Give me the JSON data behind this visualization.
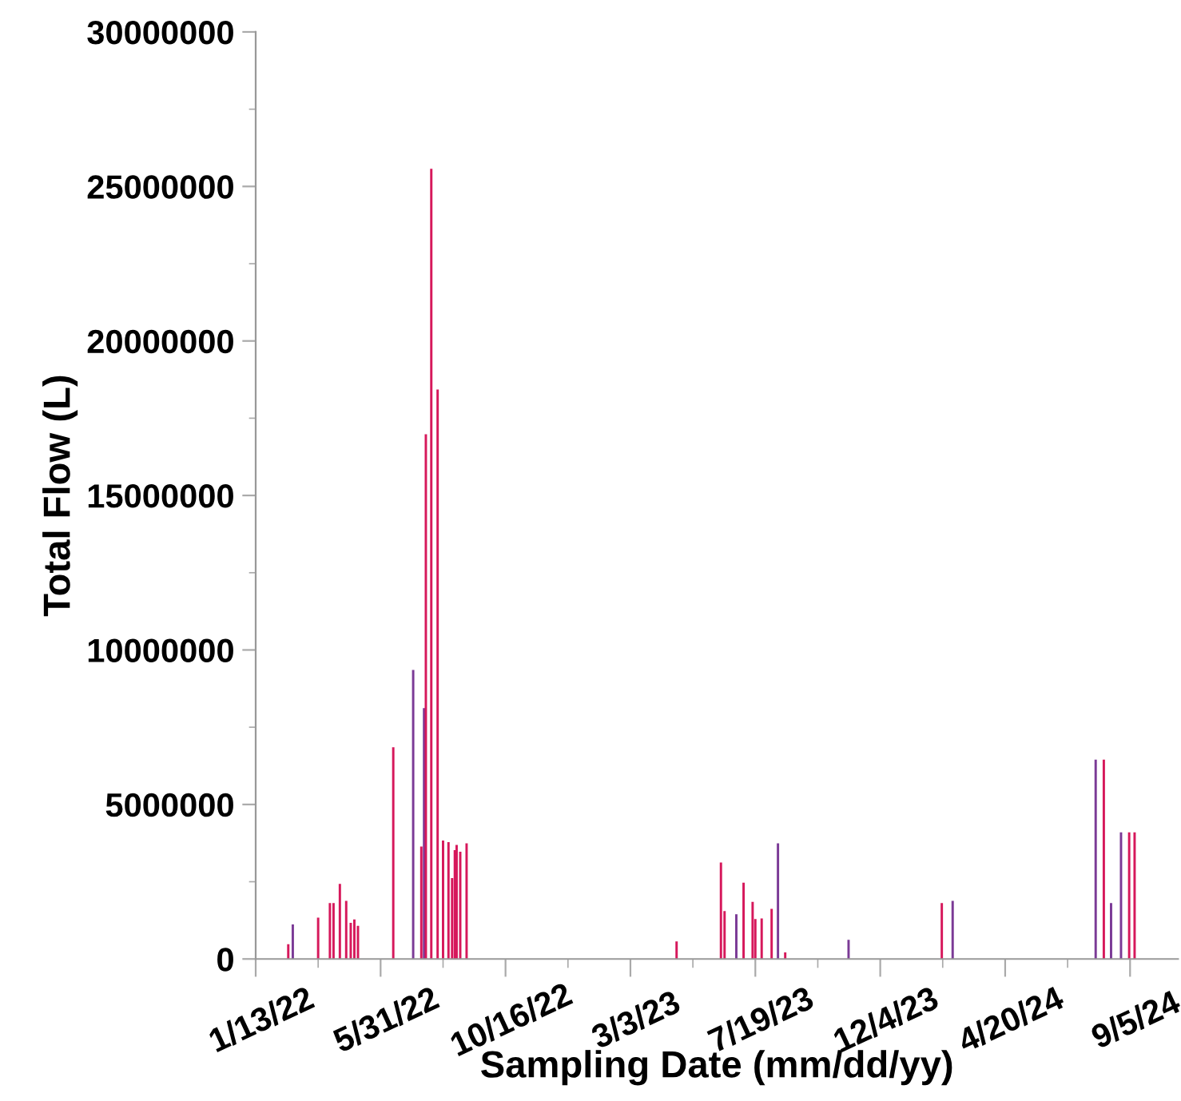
{
  "chart_data": {
    "type": "bar",
    "xlabel": "Sampling Date (mm/dd/yy)",
    "ylabel": "Total Flow (L)",
    "x": [
      "2022-02-18",
      "2022-02-23",
      "2022-03-23",
      "2022-04-05",
      "2022-04-09",
      "2022-04-16",
      "2022-04-23",
      "2022-04-28",
      "2022-05-02",
      "2022-05-06",
      "2022-06-14",
      "2022-07-06",
      "2022-07-15",
      "2022-07-18",
      "2022-07-20",
      "2022-07-26",
      "2022-08-02",
      "2022-08-08",
      "2022-08-14",
      "2022-08-18",
      "2022-08-21",
      "2022-08-23",
      "2022-08-27",
      "2022-09-03",
      "2023-04-23",
      "2023-06-11",
      "2023-06-15",
      "2023-06-28",
      "2023-07-06",
      "2023-07-16",
      "2023-07-19",
      "2023-07-26",
      "2023-08-06",
      "2023-08-13",
      "2023-08-21",
      "2023-10-30",
      "2024-02-10",
      "2024-02-22",
      "2024-07-29",
      "2024-08-07",
      "2024-08-15",
      "2024-08-26",
      "2024-09-04",
      "2024-09-10"
    ],
    "values": [
      480000,
      1120000,
      1340000,
      1810000,
      1810000,
      2430000,
      1880000,
      1170000,
      1280000,
      1070000,
      6850000,
      9350000,
      3640000,
      8120000,
      16980000,
      25570000,
      18430000,
      3830000,
      3780000,
      2620000,
      3520000,
      3690000,
      3470000,
      3740000,
      570000,
      3120000,
      1550000,
      1450000,
      2470000,
      1850000,
      1290000,
      1310000,
      1620000,
      3740000,
      210000,
      620000,
      1810000,
      1880000,
      6450000,
      6450000,
      1810000,
      4100000,
      4100000,
      4100000
    ],
    "colors": [
      "#d6185b",
      "#7b3a96",
      "#d6185b",
      "#d6185b",
      "#d6185b",
      "#d6185b",
      "#d6185b",
      "#d6185b",
      "#d6185b",
      "#d6185b",
      "#d6185b",
      "#7b3a96",
      "#d6185b",
      "#7b3a96",
      "#d6185b",
      "#d6185b",
      "#d6185b",
      "#d6185b",
      "#d6185b",
      "#d6185b",
      "#d6185b",
      "#d6185b",
      "#d6185b",
      "#d6185b",
      "#d6185b",
      "#d6185b",
      "#d6185b",
      "#7b3a96",
      "#d6185b",
      "#d6185b",
      "#d6185b",
      "#d6185b",
      "#d6185b",
      "#7b3a96",
      "#d6185b",
      "#7b3a96",
      "#d6185b",
      "#7b3a96",
      "#7b3a96",
      "#d6185b",
      "#7b3a96",
      "#7b3a96",
      "#d6185b",
      "#d6185b"
    ],
    "xlim": [
      "2022-01-13",
      "2024-10-28"
    ],
    "xticks": [
      {
        "value": "2022-01-13",
        "label": "1/13/22"
      },
      {
        "value": "2022-05-31",
        "label": "5/31/22"
      },
      {
        "value": "2022-10-16",
        "label": "10/16/22"
      },
      {
        "value": "2023-03-03",
        "label": "3/3/23"
      },
      {
        "value": "2023-07-19",
        "label": "7/19/23"
      },
      {
        "value": "2023-12-04",
        "label": "12/4/23"
      },
      {
        "value": "2024-04-20",
        "label": "4/20/24"
      },
      {
        "value": "2024-09-05",
        "label": "9/5/24"
      }
    ],
    "ylim": [
      0,
      30000000
    ],
    "yticks": [
      0,
      5000000,
      10000000,
      15000000,
      20000000,
      25000000,
      30000000
    ],
    "grid": false
  }
}
